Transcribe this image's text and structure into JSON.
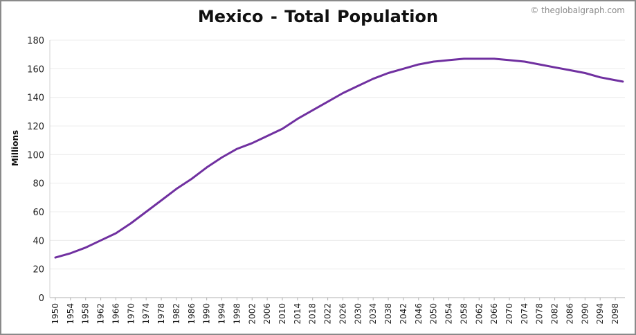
{
  "chart_data": {
    "type": "line",
    "title": "Mexico - Total Population",
    "credit": "© theglobalgraph.com",
    "ylabel": "Millions",
    "xlabel": "",
    "ylim": [
      0,
      180
    ],
    "y_ticks": [
      0,
      20,
      40,
      60,
      80,
      100,
      120,
      140,
      160,
      180
    ],
    "xlim": [
      1950,
      2100
    ],
    "x_ticks": [
      1950,
      1954,
      1958,
      1962,
      1966,
      1970,
      1974,
      1978,
      1982,
      1986,
      1990,
      1994,
      1998,
      2002,
      2006,
      2010,
      2014,
      2018,
      2022,
      2026,
      2030,
      2034,
      2038,
      2042,
      2046,
      2050,
      2054,
      2058,
      2062,
      2066,
      2070,
      2074,
      2078,
      2082,
      2086,
      2090,
      2094,
      2098
    ],
    "grid": true,
    "series": [
      {
        "color": "#7030a0",
        "x": [
          1950,
          1954,
          1958,
          1962,
          1966,
          1970,
          1974,
          1978,
          1982,
          1986,
          1990,
          1994,
          1998,
          2002,
          2006,
          2010,
          2014,
          2018,
          2022,
          2026,
          2030,
          2034,
          2038,
          2042,
          2046,
          2050,
          2054,
          2058,
          2062,
          2066,
          2070,
          2074,
          2078,
          2082,
          2086,
          2090,
          2094,
          2098,
          2100
        ],
        "values": [
          28,
          31,
          35,
          40,
          45,
          52,
          60,
          68,
          76,
          83,
          91,
          98,
          104,
          108,
          113,
          118,
          125,
          131,
          137,
          143,
          148,
          153,
          157,
          160,
          163,
          165,
          166,
          167,
          167,
          167,
          166,
          165,
          163,
          161,
          159,
          157,
          154,
          152,
          151
        ]
      }
    ]
  }
}
